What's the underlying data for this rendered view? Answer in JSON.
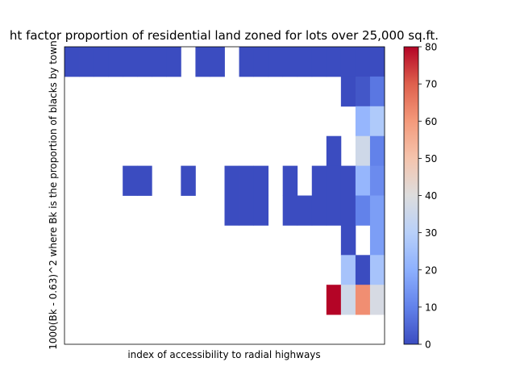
{
  "chart_data": {
    "type": "heatmap",
    "title": "ht factor proportion of residential land zoned for lots over 25,000 sq.ft.",
    "xlabel": "index of accessibility to radial highways",
    "ylabel": "1000(Bk - 0.63)^2 where Bk is the proportion of blacks by town",
    "x_tick_labels": [],
    "y_tick_labels": [],
    "n_cols": 22,
    "n_rows": 10,
    "colormap": "coolwarm",
    "colorbar": {
      "range": [
        0,
        80
      ],
      "ticks": [
        "0",
        "10",
        "20",
        "30",
        "40",
        "50",
        "60",
        "70",
        "80"
      ]
    },
    "cells": [
      {
        "row": 0,
        "col": 0,
        "value": 0
      },
      {
        "row": 0,
        "col": 1,
        "value": 0
      },
      {
        "row": 0,
        "col": 2,
        "value": 0
      },
      {
        "row": 0,
        "col": 3,
        "value": 0
      },
      {
        "row": 0,
        "col": 4,
        "value": 0
      },
      {
        "row": 0,
        "col": 5,
        "value": 0
      },
      {
        "row": 0,
        "col": 6,
        "value": 0
      },
      {
        "row": 0,
        "col": 7,
        "value": 0
      },
      {
        "row": 0,
        "col": 9,
        "value": 0
      },
      {
        "row": 0,
        "col": 10,
        "value": 0
      },
      {
        "row": 0,
        "col": 12,
        "value": 0
      },
      {
        "row": 0,
        "col": 13,
        "value": 0
      },
      {
        "row": 0,
        "col": 14,
        "value": 0
      },
      {
        "row": 0,
        "col": 15,
        "value": 0
      },
      {
        "row": 0,
        "col": 16,
        "value": 0
      },
      {
        "row": 0,
        "col": 17,
        "value": 0
      },
      {
        "row": 0,
        "col": 18,
        "value": 0
      },
      {
        "row": 0,
        "col": 19,
        "value": 0
      },
      {
        "row": 0,
        "col": 20,
        "value": 0
      },
      {
        "row": 0,
        "col": 21,
        "value": 0
      },
      {
        "row": 1,
        "col": 19,
        "value": 0
      },
      {
        "row": 1,
        "col": 20,
        "value": 2
      },
      {
        "row": 1,
        "col": 21,
        "value": 8
      },
      {
        "row": 2,
        "col": 20,
        "value": 22
      },
      {
        "row": 2,
        "col": 21,
        "value": 28
      },
      {
        "row": 3,
        "col": 18,
        "value": 0
      },
      {
        "row": 3,
        "col": 20,
        "value": 36
      },
      {
        "row": 3,
        "col": 21,
        "value": 10
      },
      {
        "row": 4,
        "col": 4,
        "value": 0
      },
      {
        "row": 4,
        "col": 5,
        "value": 0
      },
      {
        "row": 4,
        "col": 8,
        "value": 0
      },
      {
        "row": 4,
        "col": 11,
        "value": 0
      },
      {
        "row": 4,
        "col": 12,
        "value": 0
      },
      {
        "row": 4,
        "col": 13,
        "value": 0
      },
      {
        "row": 4,
        "col": 15,
        "value": 0
      },
      {
        "row": 4,
        "col": 17,
        "value": 0
      },
      {
        "row": 4,
        "col": 18,
        "value": 0
      },
      {
        "row": 4,
        "col": 19,
        "value": 0
      },
      {
        "row": 4,
        "col": 20,
        "value": 22
      },
      {
        "row": 4,
        "col": 21,
        "value": 12
      },
      {
        "row": 5,
        "col": 11,
        "value": 0
      },
      {
        "row": 5,
        "col": 12,
        "value": 0
      },
      {
        "row": 5,
        "col": 13,
        "value": 0
      },
      {
        "row": 5,
        "col": 15,
        "value": 0
      },
      {
        "row": 5,
        "col": 16,
        "value": 0
      },
      {
        "row": 5,
        "col": 17,
        "value": 0
      },
      {
        "row": 5,
        "col": 18,
        "value": 0
      },
      {
        "row": 5,
        "col": 19,
        "value": 0
      },
      {
        "row": 5,
        "col": 20,
        "value": 10
      },
      {
        "row": 5,
        "col": 21,
        "value": 16
      },
      {
        "row": 6,
        "col": 19,
        "value": 0
      },
      {
        "row": 6,
        "col": 21,
        "value": 16
      },
      {
        "row": 7,
        "col": 19,
        "value": 26
      },
      {
        "row": 7,
        "col": 20,
        "value": 0
      },
      {
        "row": 7,
        "col": 21,
        "value": 26
      },
      {
        "row": 8,
        "col": 18,
        "value": 80
      },
      {
        "row": 8,
        "col": 19,
        "value": 36
      },
      {
        "row": 8,
        "col": 20,
        "value": 62
      },
      {
        "row": 8,
        "col": 21,
        "value": 38
      }
    ]
  }
}
